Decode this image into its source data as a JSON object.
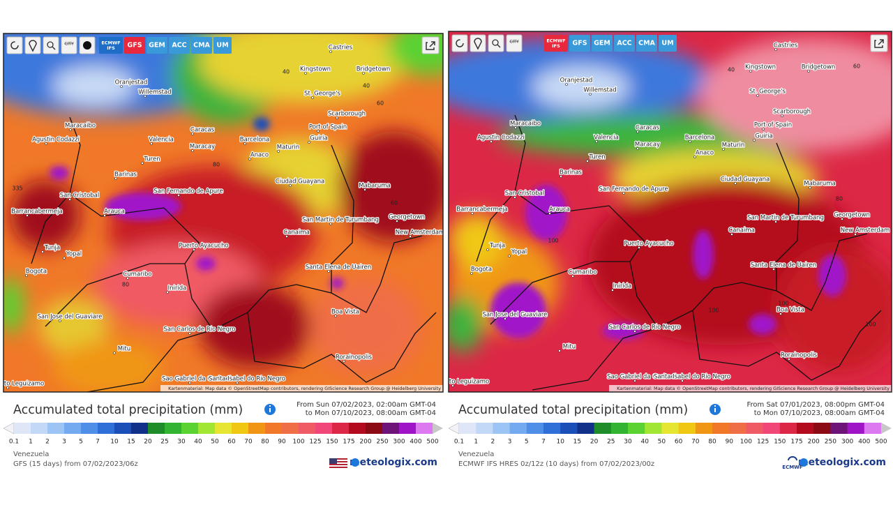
{
  "panels": [
    {
      "toolbar": {
        "city": "CITY",
        "models": [
          [
            "ECMWF",
            "IFS"
          ],
          [
            "GFS"
          ],
          [
            "GEM"
          ],
          [
            "ACC"
          ],
          [
            "CMA"
          ],
          [
            "UM"
          ]
        ],
        "active_model": "GFS"
      },
      "cities": [
        "Castries",
        "Kingstown",
        "Bridgetown",
        "Oranjestad",
        "Willemstad",
        "St. George's",
        "Scarborough",
        "Maracaibo",
        "Caracas",
        "Port of Spain",
        "Agustin Codazzi",
        "Valencia",
        "Barcelona",
        "Guiria",
        "Maracay",
        "Maturin",
        "Anaco",
        "Turen",
        "Barinas",
        "Ciudad Guayana",
        "Mabaruma",
        "San Fernando de Apure",
        "San Cristobal",
        "Arauca",
        "Barrancabermeja",
        "Georgetown",
        "San Martin de Turumbang",
        "New Amsterdam",
        "Canaima",
        "Puerto Ayacucho",
        "Tunja",
        "Yopal",
        "Bogota",
        "Santa Elena de Uairen",
        "Cumaribo",
        "Inirida",
        "Boa Vista",
        "San Jose del Guaviare",
        "San Carlos de Rio Negro",
        "Mitu",
        "Rorainopolis",
        "Sao Gabriel da Cachoeira",
        "Santa Isabel do Rio Negro",
        "Puerto Leguizamo"
      ],
      "contour_labels": [
        "40",
        "40",
        "60",
        "80",
        "60",
        "80",
        "335"
      ],
      "attribution": "Kartenmaterial: Map data © OpenStreetMap contributors, rendering GIScience Research Group @ Heidelberg University",
      "title": "Accumulated total precipitation (mm)",
      "from": "From Sun 07/02/2023, 02:00am GMT-04",
      "to": "to Mon 07/10/2023, 08:00am GMT-04",
      "region": "Venezuela",
      "model_run": "GFS (15 days) from 07/02/2023/06z",
      "brand": "meteologix.com"
    },
    {
      "toolbar": {
        "city": "CITY",
        "models": [
          [
            "ECMWF",
            "IFS"
          ],
          [
            "GFS"
          ],
          [
            "GEM"
          ],
          [
            "ACC"
          ],
          [
            "CMA"
          ],
          [
            "UM"
          ]
        ],
        "active_model": "ECMWF"
      },
      "cities": [
        "Castries",
        "Kingstown",
        "Bridgetown",
        "Oranjestad",
        "Willemstad",
        "St. George's",
        "Scarborough",
        "Maracaibo",
        "Caracas",
        "Port of Spain",
        "Agustin Codazzi",
        "Valencia",
        "Barcelona",
        "Guiria",
        "Maracay",
        "Maturin",
        "Anaco",
        "Turen",
        "Barinas",
        "Ciudad Guayana",
        "Mabaruma",
        "San Fernando de Apure",
        "San Cristobal",
        "Arauca",
        "Barrancabermeja",
        "Georgetown",
        "San Martin de Turumbang",
        "New Amsterdam",
        "Canaima",
        "Puerto Ayacucho",
        "Tunja",
        "Yopal",
        "Bogota",
        "Santa Elena de Uairen",
        "Cumaribo",
        "Inirida",
        "Boa Vista",
        "San Jose del Guaviare",
        "San Carlos de Rio Negro",
        "Mitu",
        "Rorainopolis",
        "Sao Gabriel da Cachoeira",
        "Santa Isabel do Rio Negro",
        "Puerto Leguizamo"
      ],
      "contour_labels": [
        "40",
        "60",
        "80",
        "100",
        "100",
        "100",
        "100"
      ],
      "attribution": "Kartenmaterial: Map data © OpenStreetMap contributors, rendering GIScience Research Group @ Heidelberg University",
      "title": "Accumulated total precipitation (mm)",
      "from": "From Sat 07/01/2023, 08:00pm GMT-04",
      "to": "to Mon 07/10/2023, 08:00am GMT-04",
      "region": "Venezuela",
      "model_run": "ECMWF IFS HRES 0z/12z (10 days) from 07/02/2023/00z",
      "brand": "meteologix.com",
      "logo": "ECMWF"
    }
  ],
  "scale": {
    "values": [
      "0.1",
      "1",
      "2",
      "3",
      "5",
      "7",
      "10",
      "15",
      "20",
      "25",
      "30",
      "40",
      "50",
      "60",
      "70",
      "80",
      "90",
      "100",
      "125",
      "150",
      "175",
      "200",
      "250",
      "300",
      "400",
      "500"
    ],
    "colors": [
      "#f2f2f8",
      "#dfe6f7",
      "#c2d8f6",
      "#9cc4f5",
      "#74aaf0",
      "#4f8fe8",
      "#2f6fd8",
      "#1a4fb8",
      "#10308a",
      "#1e8c28",
      "#32b432",
      "#5ad232",
      "#a0e632",
      "#e6e632",
      "#f0c814",
      "#f09614",
      "#f07828",
      "#f06e46",
      "#f05a64",
      "#f04678",
      "#dc2846",
      "#b40a1e",
      "#8c0a14",
      "#6e1478",
      "#a014c8",
      "#dc78f0",
      "#c8c8c8"
    ]
  }
}
